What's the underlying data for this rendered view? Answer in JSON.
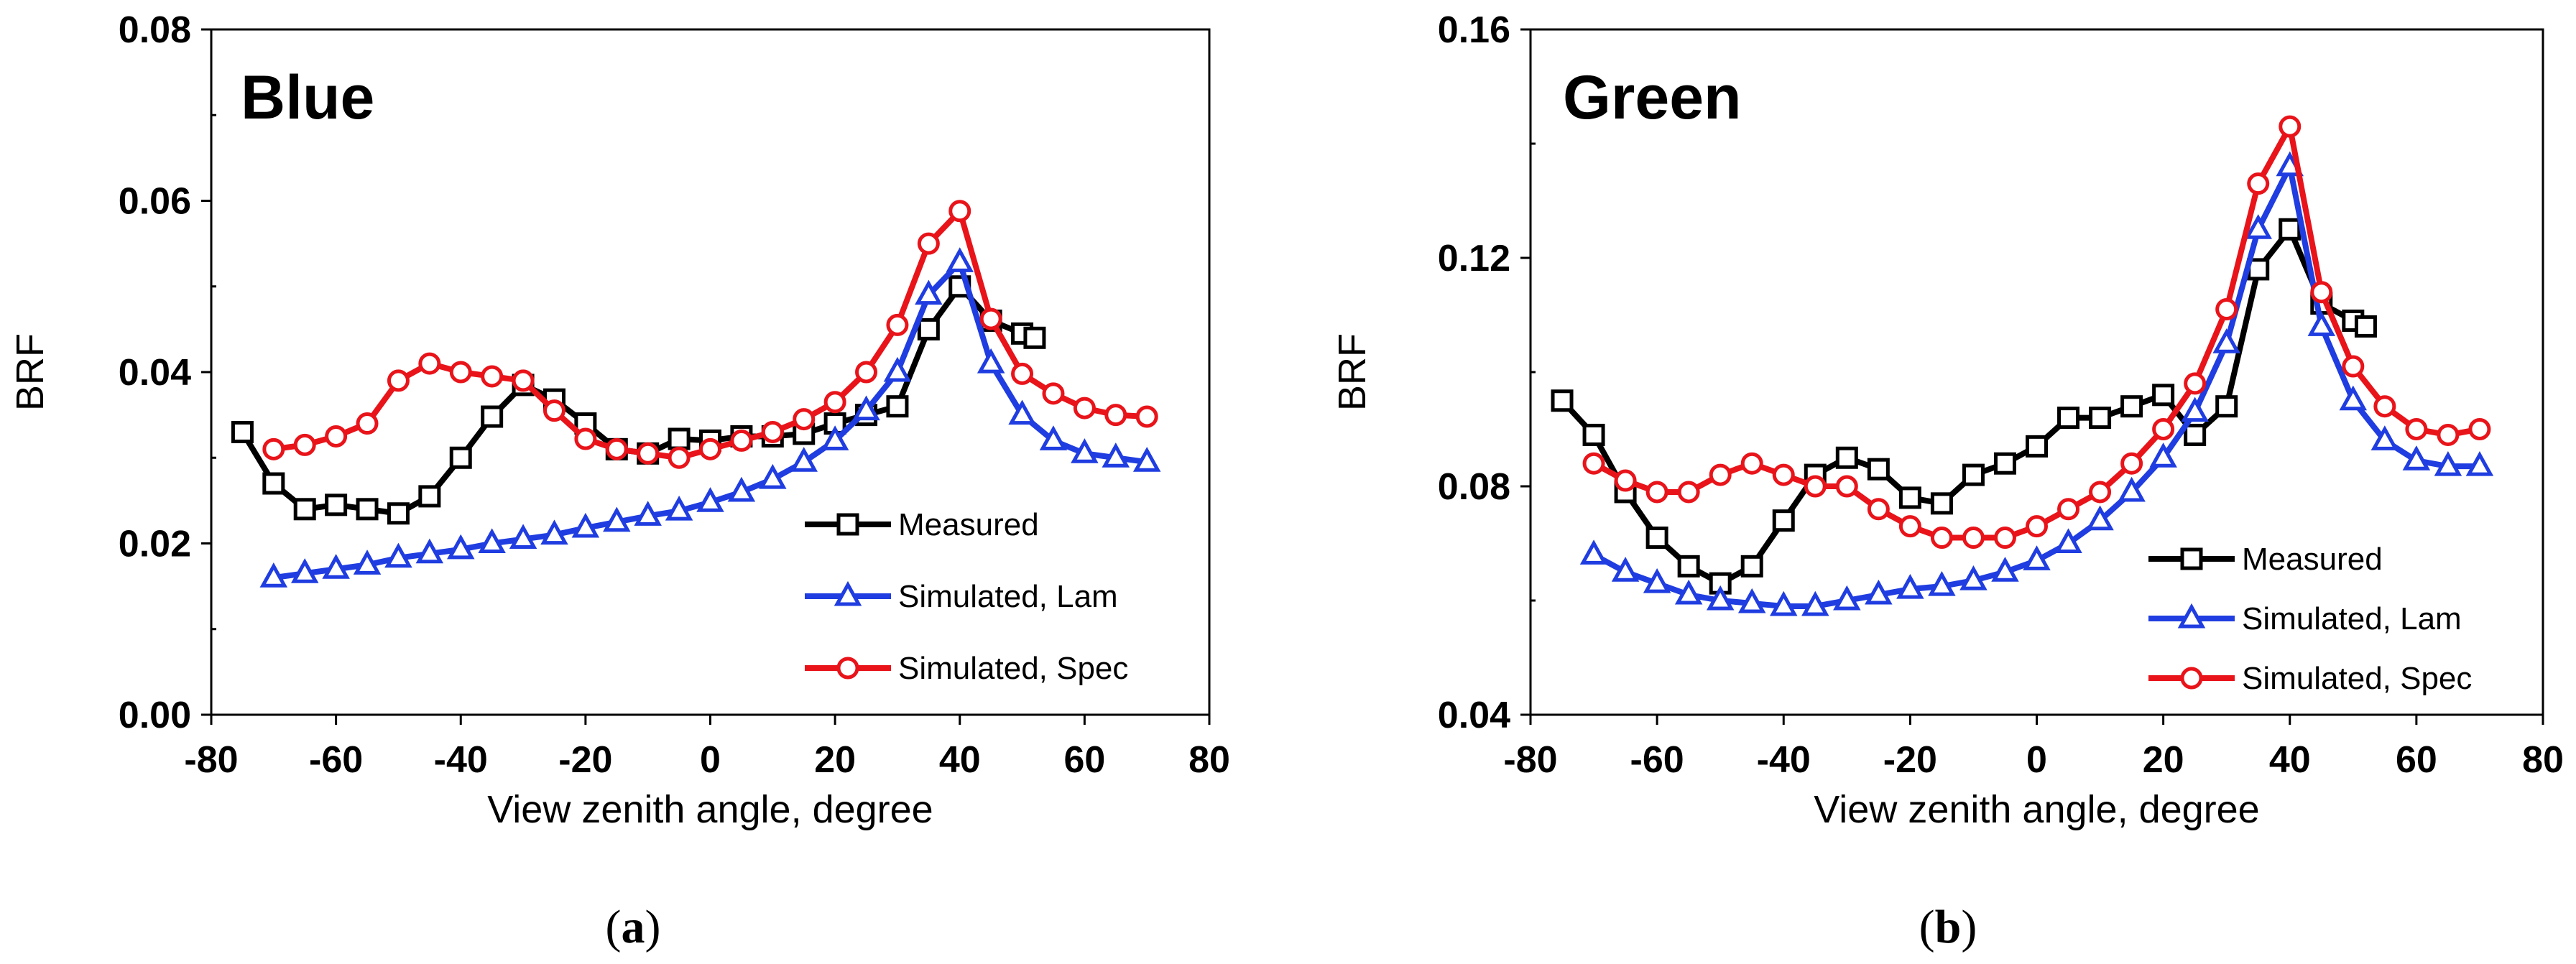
{
  "chart_data": [
    {
      "type": "line",
      "title": "Blue",
      "caption_letter": "a",
      "xlabel": "View zenith angle, degree",
      "ylabel": "BRF",
      "xlim": [
        -80,
        80
      ],
      "ylim": [
        0,
        0.08
      ],
      "xticks": [
        -80,
        -60,
        -40,
        -20,
        0,
        20,
        40,
        60,
        80
      ],
      "yticks": [
        0.0,
        0.02,
        0.04,
        0.06,
        0.08
      ],
      "yticklabels": [
        "0.00",
        "0.02",
        "0.04",
        "0.06",
        "0.08"
      ],
      "legend_position": "bottom-right",
      "series": [
        {
          "name": "Measured",
          "color": "#000000",
          "marker": "square",
          "x": [
            -75,
            -70,
            -65,
            -60,
            -55,
            -50,
            -45,
            -40,
            -35,
            -30,
            -25,
            -20,
            -15,
            -10,
            -5,
            0,
            5,
            10,
            15,
            20,
            25,
            30,
            35,
            40,
            45,
            50,
            52
          ],
          "y": [
            0.033,
            0.027,
            0.024,
            0.0245,
            0.024,
            0.0235,
            0.0255,
            0.03,
            0.0348,
            0.0385,
            0.0368,
            0.034,
            0.031,
            0.0305,
            0.0322,
            0.032,
            0.0325,
            0.0325,
            0.0328,
            0.034,
            0.035,
            0.036,
            0.045,
            0.05,
            0.046,
            0.0445,
            0.044
          ]
        },
        {
          "name": "Simulated, Lam",
          "color": "#1f3de0",
          "marker": "triangle",
          "x": [
            -70,
            -65,
            -60,
            -55,
            -50,
            -45,
            -40,
            -35,
            -30,
            -25,
            -20,
            -15,
            -10,
            -5,
            0,
            5,
            10,
            15,
            20,
            25,
            30,
            35,
            40,
            45,
            50,
            55,
            60,
            65,
            70
          ],
          "y": [
            0.016,
            0.0165,
            0.017,
            0.0175,
            0.0183,
            0.0188,
            0.0193,
            0.02,
            0.0205,
            0.021,
            0.0218,
            0.0225,
            0.0232,
            0.0238,
            0.0248,
            0.026,
            0.0275,
            0.0295,
            0.032,
            0.0355,
            0.04,
            0.049,
            0.0528,
            0.041,
            0.035,
            0.032,
            0.0305,
            0.03,
            0.0295
          ]
        },
        {
          "name": "Simulated, Spec",
          "color": "#e8141a",
          "marker": "circle",
          "x": [
            -70,
            -65,
            -60,
            -55,
            -50,
            -45,
            -40,
            -35,
            -30,
            -25,
            -20,
            -15,
            -10,
            -5,
            0,
            5,
            10,
            15,
            20,
            25,
            30,
            35,
            40,
            45,
            50,
            55,
            60,
            65,
            70
          ],
          "y": [
            0.031,
            0.0315,
            0.0325,
            0.034,
            0.039,
            0.041,
            0.04,
            0.0395,
            0.039,
            0.0355,
            0.0322,
            0.031,
            0.0305,
            0.03,
            0.031,
            0.032,
            0.033,
            0.0345,
            0.0365,
            0.04,
            0.0455,
            0.055,
            0.0588,
            0.0462,
            0.0398,
            0.0375,
            0.0358,
            0.035,
            0.0348
          ]
        }
      ]
    },
    {
      "type": "line",
      "title": "Green",
      "caption_letter": "b",
      "xlabel": "View zenith angle, degree",
      "ylabel": "BRF",
      "xlim": [
        -80,
        80
      ],
      "ylim": [
        0.04,
        0.16
      ],
      "xticks": [
        -80,
        -60,
        -40,
        -20,
        0,
        20,
        40,
        60,
        80
      ],
      "yticks": [
        0.04,
        0.08,
        0.12,
        0.16
      ],
      "yticklabels": [
        "0.04",
        "0.08",
        "0.12",
        "0.16"
      ],
      "legend_position": "bottom-right",
      "series": [
        {
          "name": "Measured",
          "color": "#000000",
          "marker": "square",
          "x": [
            -75,
            -70,
            -65,
            -60,
            -55,
            -50,
            -45,
            -40,
            -35,
            -30,
            -25,
            -20,
            -15,
            -10,
            -5,
            0,
            5,
            10,
            15,
            20,
            25,
            30,
            35,
            40,
            45,
            50,
            52
          ],
          "y": [
            0.095,
            0.089,
            0.079,
            0.071,
            0.066,
            0.063,
            0.066,
            0.074,
            0.082,
            0.085,
            0.083,
            0.078,
            0.077,
            0.082,
            0.084,
            0.087,
            0.092,
            0.092,
            0.094,
            0.096,
            0.089,
            0.094,
            0.118,
            0.125,
            0.112,
            0.109,
            0.108
          ]
        },
        {
          "name": "Simulated, Lam",
          "color": "#1f3de0",
          "marker": "triangle",
          "x": [
            -70,
            -65,
            -60,
            -55,
            -50,
            -45,
            -40,
            -35,
            -30,
            -25,
            -20,
            -15,
            -10,
            -5,
            0,
            5,
            10,
            15,
            20,
            25,
            30,
            35,
            40,
            45,
            50,
            55,
            60,
            65,
            70
          ],
          "y": [
            0.068,
            0.065,
            0.063,
            0.061,
            0.06,
            0.0595,
            0.059,
            0.059,
            0.06,
            0.061,
            0.062,
            0.0625,
            0.0635,
            0.065,
            0.067,
            0.07,
            0.074,
            0.079,
            0.085,
            0.093,
            0.105,
            0.125,
            0.136,
            0.108,
            0.095,
            0.088,
            0.0845,
            0.0835,
            0.0835
          ]
        },
        {
          "name": "Simulated, Spec",
          "color": "#e8141a",
          "marker": "circle",
          "x": [
            -70,
            -65,
            -60,
            -55,
            -50,
            -45,
            -40,
            -35,
            -30,
            -25,
            -20,
            -15,
            -10,
            -5,
            0,
            5,
            10,
            15,
            20,
            25,
            30,
            35,
            40,
            45,
            50,
            55,
            60,
            65,
            70
          ],
          "y": [
            0.084,
            0.081,
            0.079,
            0.079,
            0.082,
            0.084,
            0.082,
            0.08,
            0.08,
            0.076,
            0.073,
            0.071,
            0.071,
            0.071,
            0.073,
            0.076,
            0.079,
            0.084,
            0.09,
            0.098,
            0.111,
            0.133,
            0.143,
            0.114,
            0.101,
            0.094,
            0.09,
            0.089,
            0.09
          ]
        }
      ]
    }
  ]
}
